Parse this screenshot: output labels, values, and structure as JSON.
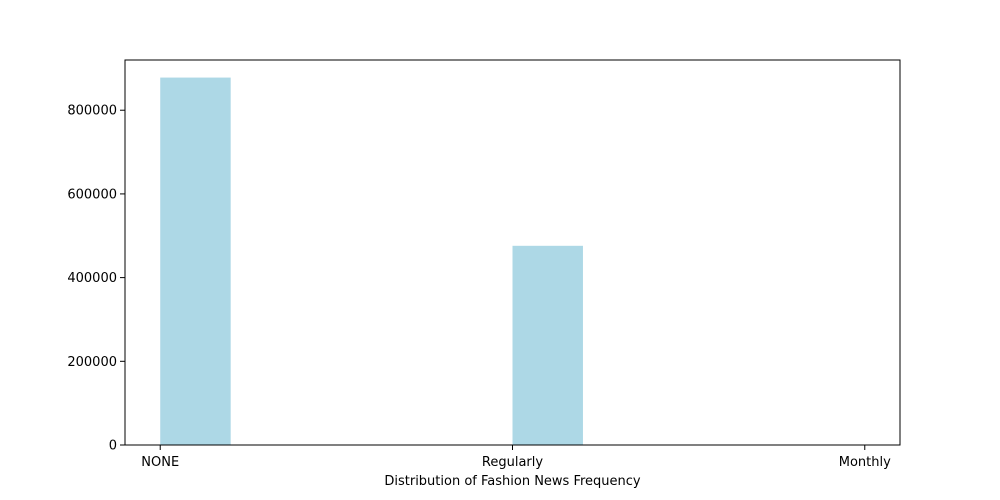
{
  "chart_data": {
    "type": "bar",
    "title": "",
    "xlabel": "Distribution of Fashion News Frequency",
    "ylabel": "",
    "x_ticks": [
      "NONE",
      "Regularly",
      "Monthly"
    ],
    "y_ticks": [
      "0",
      "200000",
      "400000",
      "600000",
      "800000"
    ],
    "ylim": [
      0,
      920000
    ],
    "grid": false,
    "legend": "none",
    "bar_color": "#add8e6",
    "bars": [
      {
        "label": "NONE",
        "x_start": 0.0,
        "x_end": 0.2,
        "value": 878000
      },
      {
        "label": "",
        "x_start": 0.2,
        "x_end": 0.4,
        "value": 0
      },
      {
        "label": "",
        "x_start": 0.4,
        "x_end": 0.6,
        "value": 0
      },
      {
        "label": "",
        "x_start": 0.6,
        "x_end": 0.8,
        "value": 0
      },
      {
        "label": "",
        "x_start": 0.8,
        "x_end": 1.0,
        "value": 0
      },
      {
        "label": "Regularly",
        "x_start": 1.0,
        "x_end": 1.2,
        "value": 476000
      },
      {
        "label": "",
        "x_start": 1.2,
        "x_end": 1.4,
        "value": 0
      },
      {
        "label": "",
        "x_start": 1.4,
        "x_end": 1.6,
        "value": 0
      },
      {
        "label": "",
        "x_start": 1.6,
        "x_end": 1.8,
        "value": 0
      },
      {
        "label": "Monthly",
        "x_start": 1.8,
        "x_end": 2.0,
        "value": 800
      }
    ],
    "xlim": [
      -0.1,
      2.1
    ]
  }
}
